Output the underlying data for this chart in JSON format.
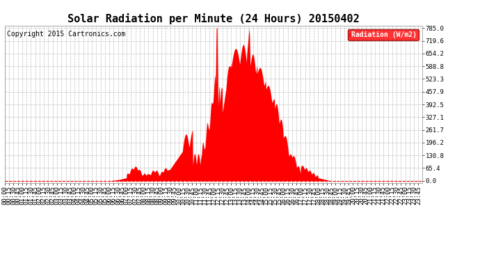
{
  "title": "Solar Radiation per Minute (24 Hours) 20150402",
  "copyright_text": "Copyright 2015 Cartronics.com",
  "legend_label": "Radiation (W/m2)",
  "ylim": [
    0.0,
    785.0
  ],
  "yticks": [
    0.0,
    65.4,
    130.8,
    196.2,
    261.7,
    327.1,
    392.5,
    457.9,
    523.3,
    588.8,
    654.2,
    719.6,
    785.0
  ],
  "fill_color": "#ff0000",
  "line_color": "#ff0000",
  "background_color": "#ffffff",
  "grid_color": "#bbbbbb",
  "title_fontsize": 11,
  "copyright_fontsize": 7,
  "tick_fontsize": 6.5
}
